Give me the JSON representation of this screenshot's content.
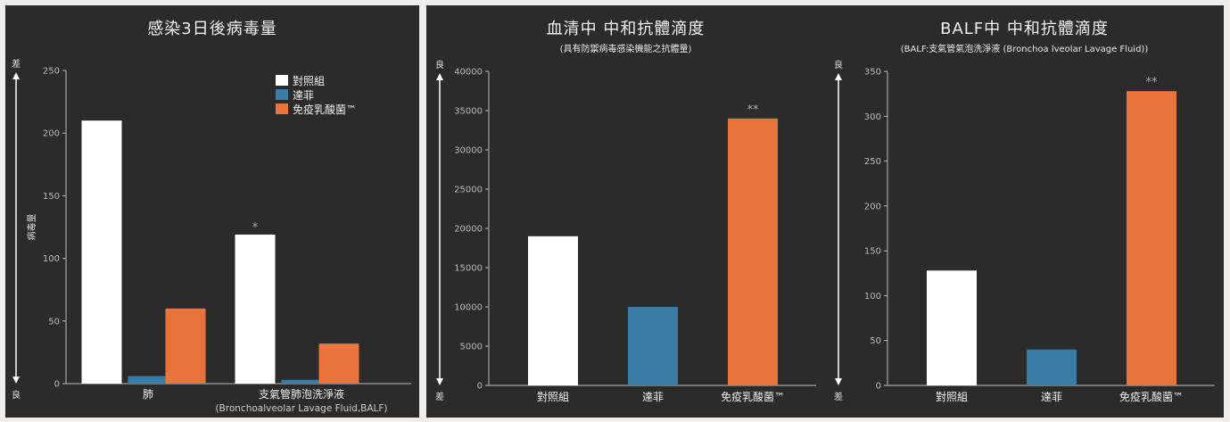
{
  "chart_data": [
    {
      "type": "bar",
      "title": "感染3日後病毒量",
      "ylabel": "病毒量",
      "arrow_top_label": "差",
      "arrow_bottom_label": "良",
      "ylim": [
        0,
        250
      ],
      "yticks": [
        0,
        50,
        100,
        150,
        200,
        250
      ],
      "categories": [
        "肺",
        "支氣管肺泡洗淨液"
      ],
      "category_sublabels": [
        "",
        "(Bronchoalveolar Lavage Fluid,BALF)"
      ],
      "legend": "top-right",
      "series": [
        {
          "name": "對照組",
          "color": "#ffffff",
          "values": [
            210,
            119
          ]
        },
        {
          "name": "達菲",
          "color": "#3a7ca5",
          "values": [
            6,
            3
          ]
        },
        {
          "name": "免疫乳酸菌™",
          "color": "#e8743b",
          "values": [
            60,
            32
          ]
        }
      ],
      "annotations": [
        {
          "category": 1,
          "series": 0,
          "text": "*"
        }
      ]
    },
    {
      "type": "bar",
      "title": "血清中 中和抗體滴度",
      "subtitle": "(具有防禦病毒感染機能之抗體量)",
      "arrow_top_label": "良",
      "arrow_bottom_label": "差",
      "ylim": [
        0,
        40000
      ],
      "yticks": [
        0,
        5000,
        10000,
        15000,
        20000,
        25000,
        30000,
        35000,
        40000
      ],
      "categories": [
        "對照組",
        "達菲",
        "免疫乳酸菌™"
      ],
      "colors": [
        "#ffffff",
        "#3a7ca5",
        "#e8743b"
      ],
      "values": [
        19000,
        10000,
        34000
      ],
      "annotations": [
        {
          "index": 2,
          "text": "**"
        }
      ]
    },
    {
      "type": "bar",
      "title": "BALF中 中和抗體滴度",
      "subtitle": "(BALF:支氣管氣泡洗淨液 (Bronchoa lveolar Lavage Fluid))",
      "arrow_top_label": "良",
      "arrow_bottom_label": "差",
      "ylim": [
        0,
        350
      ],
      "yticks": [
        0,
        50,
        100,
        150,
        200,
        250,
        300,
        350
      ],
      "categories": [
        "對照組",
        "達菲",
        "免疫乳酸菌™"
      ],
      "colors": [
        "#ffffff",
        "#3a7ca5",
        "#e8743b"
      ],
      "values": [
        128,
        40,
        328
      ],
      "annotations": [
        {
          "index": 2,
          "text": "**"
        }
      ]
    }
  ]
}
